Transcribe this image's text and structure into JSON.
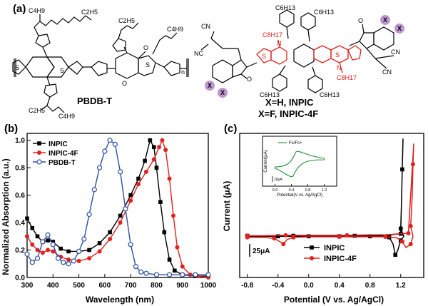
{
  "panel_a": {
    "label": "(a)",
    "polymer_name": "PBDB-T",
    "acceptor_name_1": "X=H, INPIC",
    "acceptor_name_2": "X=F, INPIC-4F",
    "substituent_x": "X",
    "repeat_unit": "n",
    "groups": {
      "c4h9": "C4H9",
      "c2h5": "C2H5",
      "c6h13": "C6H13",
      "c8h17": "C8H17",
      "cn": "CN",
      "nc": "NC",
      "s": "S",
      "o": "O",
      "n": "N"
    },
    "colors": {
      "highlight": "#e0211d",
      "x_circle": "#b07cc6"
    }
  },
  "chart_data": [
    {
      "panel": "(b)",
      "type": "line",
      "xlabel": "Wavelength (nm)",
      "ylabel": "Normalized Absorption (a.u.)",
      "xlim": [
        300,
        1000
      ],
      "ylim": [
        0,
        1.05
      ],
      "xticks": [
        300,
        400,
        500,
        600,
        700,
        800,
        900,
        1000
      ],
      "yticks": [
        0.0,
        0.2,
        0.4,
        0.6,
        0.8,
        1.0
      ],
      "legend_position": "top-left",
      "series": [
        {
          "name": "INPIC",
          "color": "#000000",
          "marker": "square-filled",
          "points": [
            [
              300,
              0.43
            ],
            [
              320,
              0.36
            ],
            [
              340,
              0.3
            ],
            [
              360,
              0.26
            ],
            [
              380,
              0.27
            ],
            [
              400,
              0.26
            ],
            [
              430,
              0.21
            ],
            [
              460,
              0.19
            ],
            [
              500,
              0.19
            ],
            [
              540,
              0.2
            ],
            [
              580,
              0.25
            ],
            [
              620,
              0.33
            ],
            [
              660,
              0.45
            ],
            [
              700,
              0.6
            ],
            [
              730,
              0.72
            ],
            [
              755,
              0.85
            ],
            [
              775,
              1.0
            ],
            [
              790,
              0.95
            ],
            [
              800,
              0.8
            ],
            [
              815,
              0.55
            ],
            [
              830,
              0.33
            ],
            [
              850,
              0.13
            ],
            [
              870,
              0.05
            ],
            [
              900,
              0.02
            ],
            [
              950,
              0.01
            ],
            [
              1000,
              0.01
            ]
          ]
        },
        {
          "name": "INPIC-4F",
          "color": "#e0211d",
          "marker": "circle-filled",
          "points": [
            [
              300,
              0.3
            ],
            [
              320,
              0.24
            ],
            [
              340,
              0.2
            ],
            [
              360,
              0.18
            ],
            [
              380,
              0.2
            ],
            [
              400,
              0.19
            ],
            [
              430,
              0.15
            ],
            [
              460,
              0.13
            ],
            [
              500,
              0.12
            ],
            [
              540,
              0.14
            ],
            [
              580,
              0.19
            ],
            [
              620,
              0.28
            ],
            [
              660,
              0.4
            ],
            [
              700,
              0.56
            ],
            [
              730,
              0.68
            ],
            [
              760,
              0.77
            ],
            [
              790,
              0.86
            ],
            [
              810,
              0.95
            ],
            [
              822,
              1.0
            ],
            [
              835,
              0.93
            ],
            [
              850,
              0.72
            ],
            [
              865,
              0.45
            ],
            [
              880,
              0.22
            ],
            [
              900,
              0.08
            ],
            [
              930,
              0.02
            ],
            [
              960,
              0.01
            ],
            [
              1000,
              0.0
            ]
          ]
        },
        {
          "name": "PBDB-T",
          "color": "#2b4fa3",
          "marker": "circle-open",
          "points": [
            [
              300,
              0.17
            ],
            [
              320,
              0.11
            ],
            [
              340,
              0.14
            ],
            [
              360,
              0.26
            ],
            [
              380,
              0.31
            ],
            [
              400,
              0.24
            ],
            [
              420,
              0.14
            ],
            [
              440,
              0.11
            ],
            [
              460,
              0.1
            ],
            [
              480,
              0.12
            ],
            [
              500,
              0.19
            ],
            [
              520,
              0.28
            ],
            [
              540,
              0.46
            ],
            [
              560,
              0.64
            ],
            [
              580,
              0.8
            ],
            [
              600,
              0.92
            ],
            [
              620,
              1.0
            ],
            [
              640,
              0.97
            ],
            [
              660,
              0.77
            ],
            [
              680,
              0.5
            ],
            [
              700,
              0.24
            ],
            [
              720,
              0.08
            ],
            [
              740,
              0.04
            ],
            [
              760,
              0.03
            ],
            [
              800,
              0.02
            ],
            [
              850,
              0.02
            ],
            [
              900,
              0.02
            ],
            [
              950,
              0.02
            ],
            [
              1000,
              0.02
            ]
          ]
        }
      ]
    },
    {
      "panel": "(c)",
      "type": "line",
      "xlabel": "Potential (V vs. Ag/AgCl)",
      "ylabel": "Current (μA)",
      "xlim": [
        -0.9,
        1.5
      ],
      "xticks": [
        -0.8,
        -0.4,
        0.0,
        0.4,
        0.8,
        1.2
      ],
      "ylim": [
        -80,
        200
      ],
      "scale_bar": "25μA",
      "legend_position": "bottom-center",
      "series": [
        {
          "name": "INPIC",
          "color": "#000000",
          "marker": "square-filled",
          "points": [
            [
              -0.8,
              0
            ],
            [
              -0.6,
              0
            ],
            [
              -0.4,
              0
            ],
            [
              -0.2,
              0
            ],
            [
              0.0,
              0
            ],
            [
              0.2,
              0
            ],
            [
              0.4,
              0
            ],
            [
              0.6,
              0
            ],
            [
              0.8,
              0
            ],
            [
              0.95,
              0
            ],
            [
              1.05,
              -2
            ],
            [
              1.1,
              -15
            ],
            [
              1.13,
              -36
            ],
            [
              1.16,
              -28
            ],
            [
              1.2,
              -8
            ],
            [
              1.24,
              0
            ],
            [
              1.2,
              15
            ],
            [
              1.21,
              65
            ],
            [
              1.22,
              130
            ],
            [
              1.23,
              190
            ],
            [
              1.2,
              5
            ],
            [
              1.0,
              2
            ],
            [
              0.6,
              1
            ],
            [
              0.2,
              1
            ],
            [
              -0.2,
              1
            ],
            [
              -0.5,
              1
            ],
            [
              -0.8,
              1
            ]
          ]
        },
        {
          "name": "INPIC-4F",
          "color": "#e0211d",
          "marker": "circle-filled",
          "points": [
            [
              -0.8,
              -2
            ],
            [
              -0.6,
              -2
            ],
            [
              -0.45,
              -4
            ],
            [
              -0.38,
              -10
            ],
            [
              -0.33,
              -15
            ],
            [
              -0.28,
              -6
            ],
            [
              -0.2,
              -2
            ],
            [
              0.0,
              -1
            ],
            [
              0.4,
              -1
            ],
            [
              0.8,
              -1
            ],
            [
              1.0,
              -1
            ],
            [
              1.15,
              -3
            ],
            [
              1.22,
              -10
            ],
            [
              1.27,
              -22
            ],
            [
              1.33,
              -15
            ],
            [
              1.36,
              0
            ],
            [
              1.33,
              20
            ],
            [
              1.35,
              80
            ],
            [
              1.36,
              140
            ],
            [
              1.37,
              180
            ],
            [
              1.3,
              6
            ],
            [
              1.0,
              3
            ],
            [
              0.5,
              2
            ],
            [
              0.0,
              2
            ],
            [
              -0.3,
              2
            ],
            [
              -0.6,
              1
            ],
            [
              -0.8,
              1
            ]
          ]
        }
      ],
      "inset": {
        "legend": "Fc/Fc+",
        "xlabel": "Potential(V vs. Ag/AgCl)",
        "ylabel": "Current(μA)",
        "xticks": [
          0.0,
          0.4,
          0.8,
          1.2
        ],
        "scale_bar": "10μA",
        "color": "#2a8a3a"
      }
    }
  ]
}
